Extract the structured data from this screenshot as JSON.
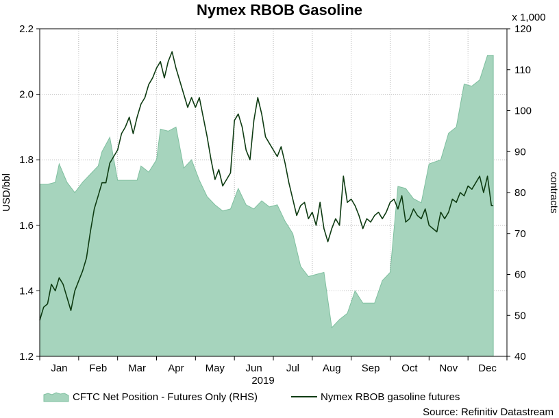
{
  "chart_data": {
    "type": "line",
    "title": "Nymex RBOB Gasoline",
    "year_label": "2019",
    "source": "Source: Refinitiv Datastream",
    "multiplier_label": "x 1,000",
    "x": {
      "unit": "month",
      "range": [
        0,
        12
      ],
      "months": [
        "Jan",
        "Feb",
        "Mar",
        "Apr",
        "May",
        "Jun",
        "Jul",
        "Aug",
        "Sep",
        "Oct",
        "Nov",
        "Dec"
      ]
    },
    "y_left": {
      "label": "USD/bbl",
      "range": [
        1.2,
        2.2
      ],
      "ticks": [
        "1.2",
        "1.4",
        "1.6",
        "1.8",
        "2.0",
        "2.2"
      ]
    },
    "y_right": {
      "label": "contracts",
      "range": [
        40,
        120
      ],
      "ticks": [
        "40",
        "50",
        "60",
        "70",
        "80",
        "90",
        "100",
        "110",
        "120"
      ]
    },
    "grid": true,
    "legend_position": "bottom",
    "colors": {
      "area_fill": "#a6d4bd",
      "area_edge": "#7fbf9f",
      "line": "#0e3b12",
      "grid": "#b8b8b8"
    },
    "series": [
      {
        "name": "CFTC Net Position - Futures Only (RHS)",
        "type": "area",
        "axis": "right",
        "points": [
          [
            0.0,
            82.0
          ],
          [
            0.2,
            82.0
          ],
          [
            0.4,
            82.5
          ],
          [
            0.5,
            87.0
          ],
          [
            0.7,
            82.5
          ],
          [
            0.9,
            80.0
          ],
          [
            1.1,
            82.5
          ],
          [
            1.3,
            84.5
          ],
          [
            1.5,
            86.5
          ],
          [
            1.6,
            90.0
          ],
          [
            1.8,
            93.5
          ],
          [
            2.0,
            83.0
          ],
          [
            2.3,
            83.0
          ],
          [
            2.5,
            83.0
          ],
          [
            2.6,
            86.5
          ],
          [
            2.8,
            85.0
          ],
          [
            3.0,
            88.0
          ],
          [
            3.1,
            95.5
          ],
          [
            3.3,
            95.0
          ],
          [
            3.5,
            96.0
          ],
          [
            3.7,
            86.0
          ],
          [
            3.9,
            88.0
          ],
          [
            4.1,
            83.0
          ],
          [
            4.3,
            79.0
          ],
          [
            4.5,
            77.0
          ],
          [
            4.7,
            75.5
          ],
          [
            4.9,
            76.0
          ],
          [
            5.1,
            81.0
          ],
          [
            5.3,
            77.0
          ],
          [
            5.5,
            76.0
          ],
          [
            5.7,
            78.0
          ],
          [
            5.9,
            76.5
          ],
          [
            6.1,
            77.0
          ],
          [
            6.3,
            73.0
          ],
          [
            6.5,
            70.0
          ],
          [
            6.7,
            62.0
          ],
          [
            6.9,
            59.5
          ],
          [
            7.1,
            60.0
          ],
          [
            7.3,
            60.5
          ],
          [
            7.5,
            47.0
          ],
          [
            7.7,
            49.0
          ],
          [
            7.9,
            50.5
          ],
          [
            8.1,
            56.0
          ],
          [
            8.3,
            53.0
          ],
          [
            8.6,
            53.0
          ],
          [
            8.8,
            58.5
          ],
          [
            9.0,
            60.5
          ],
          [
            9.2,
            81.5
          ],
          [
            9.4,
            81.0
          ],
          [
            9.6,
            78.5
          ],
          [
            9.8,
            77.5
          ],
          [
            10.0,
            87.0
          ],
          [
            10.3,
            88.0
          ],
          [
            10.5,
            94.5
          ],
          [
            10.7,
            96.0
          ],
          [
            10.9,
            106.5
          ],
          [
            11.1,
            106.0
          ],
          [
            11.3,
            107.5
          ],
          [
            11.5,
            113.5
          ],
          [
            11.65,
            113.5
          ]
        ]
      },
      {
        "name": "Nymex RBOB gasoline futures",
        "type": "line",
        "axis": "left",
        "points": [
          [
            0.0,
            1.31
          ],
          [
            0.1,
            1.35
          ],
          [
            0.2,
            1.36
          ],
          [
            0.3,
            1.42
          ],
          [
            0.4,
            1.4
          ],
          [
            0.5,
            1.44
          ],
          [
            0.6,
            1.42
          ],
          [
            0.7,
            1.38
          ],
          [
            0.8,
            1.34
          ],
          [
            0.9,
            1.4
          ],
          [
            1.0,
            1.43
          ],
          [
            1.1,
            1.46
          ],
          [
            1.2,
            1.5
          ],
          [
            1.3,
            1.58
          ],
          [
            1.4,
            1.65
          ],
          [
            1.5,
            1.69
          ],
          [
            1.6,
            1.73
          ],
          [
            1.7,
            1.73
          ],
          [
            1.8,
            1.79
          ],
          [
            1.9,
            1.81
          ],
          [
            2.0,
            1.83
          ],
          [
            2.1,
            1.88
          ],
          [
            2.2,
            1.9
          ],
          [
            2.3,
            1.93
          ],
          [
            2.4,
            1.88
          ],
          [
            2.5,
            1.93
          ],
          [
            2.6,
            1.97
          ],
          [
            2.7,
            1.99
          ],
          [
            2.8,
            2.03
          ],
          [
            2.9,
            2.05
          ],
          [
            3.0,
            2.08
          ],
          [
            3.1,
            2.1
          ],
          [
            3.2,
            2.05
          ],
          [
            3.3,
            2.1
          ],
          [
            3.4,
            2.13
          ],
          [
            3.5,
            2.08
          ],
          [
            3.6,
            2.04
          ],
          [
            3.7,
            2.0
          ],
          [
            3.8,
            1.96
          ],
          [
            3.9,
            1.99
          ],
          [
            4.0,
            1.96
          ],
          [
            4.1,
            1.99
          ],
          [
            4.2,
            1.93
          ],
          [
            4.3,
            1.87
          ],
          [
            4.4,
            1.8
          ],
          [
            4.5,
            1.74
          ],
          [
            4.6,
            1.77
          ],
          [
            4.7,
            1.72
          ],
          [
            4.8,
            1.74
          ],
          [
            4.9,
            1.76
          ],
          [
            5.0,
            1.92
          ],
          [
            5.1,
            1.94
          ],
          [
            5.2,
            1.9
          ],
          [
            5.3,
            1.83
          ],
          [
            5.4,
            1.8
          ],
          [
            5.5,
            1.92
          ],
          [
            5.6,
            1.99
          ],
          [
            5.7,
            1.94
          ],
          [
            5.8,
            1.87
          ],
          [
            5.9,
            1.85
          ],
          [
            6.0,
            1.83
          ],
          [
            6.1,
            1.81
          ],
          [
            6.2,
            1.84
          ],
          [
            6.3,
            1.79
          ],
          [
            6.4,
            1.73
          ],
          [
            6.5,
            1.68
          ],
          [
            6.6,
            1.63
          ],
          [
            6.7,
            1.66
          ],
          [
            6.8,
            1.67
          ],
          [
            6.9,
            1.62
          ],
          [
            7.0,
            1.64
          ],
          [
            7.1,
            1.6
          ],
          [
            7.2,
            1.67
          ],
          [
            7.3,
            1.59
          ],
          [
            7.4,
            1.55
          ],
          [
            7.5,
            1.59
          ],
          [
            7.6,
            1.62
          ],
          [
            7.7,
            1.6
          ],
          [
            7.8,
            1.75
          ],
          [
            7.9,
            1.67
          ],
          [
            8.0,
            1.68
          ],
          [
            8.1,
            1.66
          ],
          [
            8.2,
            1.63
          ],
          [
            8.3,
            1.59
          ],
          [
            8.4,
            1.62
          ],
          [
            8.5,
            1.61
          ],
          [
            8.6,
            1.63
          ],
          [
            8.7,
            1.64
          ],
          [
            8.8,
            1.62
          ],
          [
            8.9,
            1.64
          ],
          [
            9.0,
            1.67
          ],
          [
            9.1,
            1.68
          ],
          [
            9.2,
            1.65
          ],
          [
            9.3,
            1.69
          ],
          [
            9.4,
            1.61
          ],
          [
            9.5,
            1.62
          ],
          [
            9.6,
            1.65
          ],
          [
            9.7,
            1.63
          ],
          [
            9.8,
            1.62
          ],
          [
            9.9,
            1.65
          ],
          [
            10.0,
            1.6
          ],
          [
            10.1,
            1.59
          ],
          [
            10.2,
            1.58
          ],
          [
            10.3,
            1.64
          ],
          [
            10.4,
            1.62
          ],
          [
            10.5,
            1.64
          ],
          [
            10.6,
            1.68
          ],
          [
            10.7,
            1.67
          ],
          [
            10.8,
            1.7
          ],
          [
            10.9,
            1.69
          ],
          [
            11.0,
            1.72
          ],
          [
            11.1,
            1.71
          ],
          [
            11.2,
            1.73
          ],
          [
            11.3,
            1.75
          ],
          [
            11.4,
            1.7
          ],
          [
            11.5,
            1.75
          ],
          [
            11.6,
            1.66
          ],
          [
            11.65,
            1.66
          ]
        ]
      }
    ]
  }
}
